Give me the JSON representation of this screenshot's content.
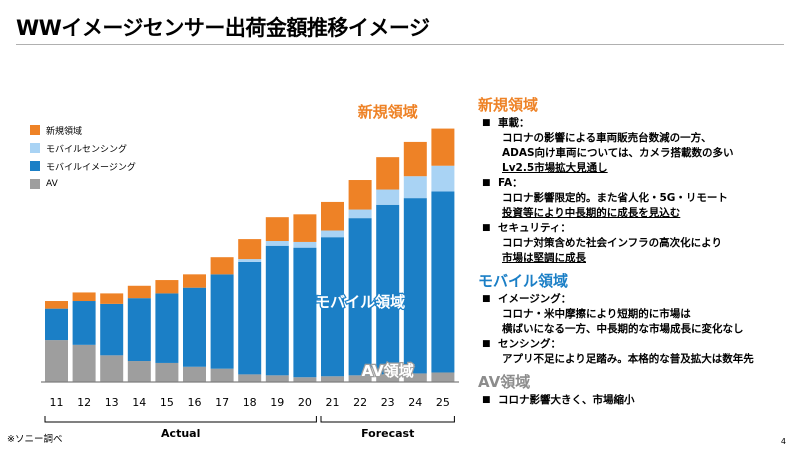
{
  "title": "WWイメージセンサー出荷金額推移イメージ",
  "footnote": "※ソニー調べ",
  "page_number": "4",
  "legend": [
    {
      "label": "新規領域",
      "color": "#ee8226"
    },
    {
      "label": "モバイルセンシング",
      "color": "#a9d3f4"
    },
    {
      "label": "モバイルイメージング",
      "color": "#1b7fc6"
    },
    {
      "label": "AV",
      "color": "#9e9e9e"
    }
  ],
  "chart_data": {
    "type": "bar",
    "stacked": true,
    "title": "WWイメージセンサー出荷金額推移イメージ",
    "categories": [
      "11",
      "12",
      "13",
      "14",
      "15",
      "16",
      "17",
      "18",
      "19",
      "20",
      "21",
      "22",
      "23",
      "24",
      "25"
    ],
    "series": [
      {
        "name": "AV",
        "color": "#9e9e9e",
        "values": [
          44,
          39,
          28,
          22,
          20,
          16,
          14,
          8,
          7,
          5,
          6,
          7,
          8,
          9,
          10
        ]
      },
      {
        "name": "モバイルイメージング",
        "color": "#1b7fc6",
        "values": [
          33,
          46,
          54,
          66,
          73,
          83,
          99,
          118,
          136,
          136,
          146,
          165,
          178,
          184,
          190
        ]
      },
      {
        "name": "モバイルセンシング",
        "color": "#a9d3f4",
        "values": [
          0,
          0,
          0,
          0,
          0,
          0,
          0,
          3,
          5,
          6,
          7,
          9,
          16,
          23,
          27
        ]
      },
      {
        "name": "新規領域",
        "color": "#ee8226",
        "values": [
          8,
          9,
          11,
          13,
          14,
          14,
          18,
          21,
          25,
          29,
          30,
          31,
          34,
          36,
          39
        ]
      }
    ],
    "ylim": [
      0,
      275
    ],
    "group_labels": [
      {
        "label": "Actual",
        "range": [
          "11",
          "20"
        ]
      },
      {
        "label": "Forecast",
        "range": [
          "21",
          "25"
        ]
      }
    ],
    "annotations": [
      {
        "text": "新規領域",
        "series": "新規領域"
      },
      {
        "text": "モバイル領域",
        "series": "モバイルイメージング"
      },
      {
        "text": "AV領域",
        "series": "AV"
      }
    ]
  },
  "sections": [
    {
      "title": "新規領域",
      "items": [
        {
          "head": "車載：",
          "lines": [
            {
              "text": "コロナの影響による車両販売台数減の一方、",
              "underline": false
            },
            {
              "text": "ADAS向け車両については、カメラ搭載数の多い",
              "underline": false
            },
            {
              "text": "Lv2.5市場拡大見通し",
              "underline": true
            }
          ]
        },
        {
          "head": "FA：",
          "lines": [
            {
              "text": "コロナ影響限定的。また省人化・5G・リモート",
              "underline": false
            },
            {
              "text": "投資等により中長期的に成長を見込む",
              "underline": true
            }
          ]
        },
        {
          "head": "セキュリティ：",
          "lines": [
            {
              "text": "コロナ対策含めた社会インフラの高次化により",
              "underline": false
            },
            {
              "text": "市場は堅調に成長",
              "underline": true
            }
          ]
        }
      ]
    },
    {
      "title": "モバイル領域",
      "items": [
        {
          "head": "イメージング：",
          "lines": [
            {
              "text": "コロナ・米中摩擦により短期的に市場は",
              "underline": false
            },
            {
              "text": "横ばいになる一方、中長期的な市場成長に変化なし",
              "underline": false
            }
          ]
        },
        {
          "head": "センシング：",
          "lines": [
            {
              "text": "アプリ不足により足踏み。本格的な普及拡大は数年先",
              "underline": false
            }
          ]
        }
      ]
    },
    {
      "title": "AV領域",
      "items": [
        {
          "head": "コロナ影響大きく、市場縮小",
          "lines": []
        }
      ]
    }
  ]
}
